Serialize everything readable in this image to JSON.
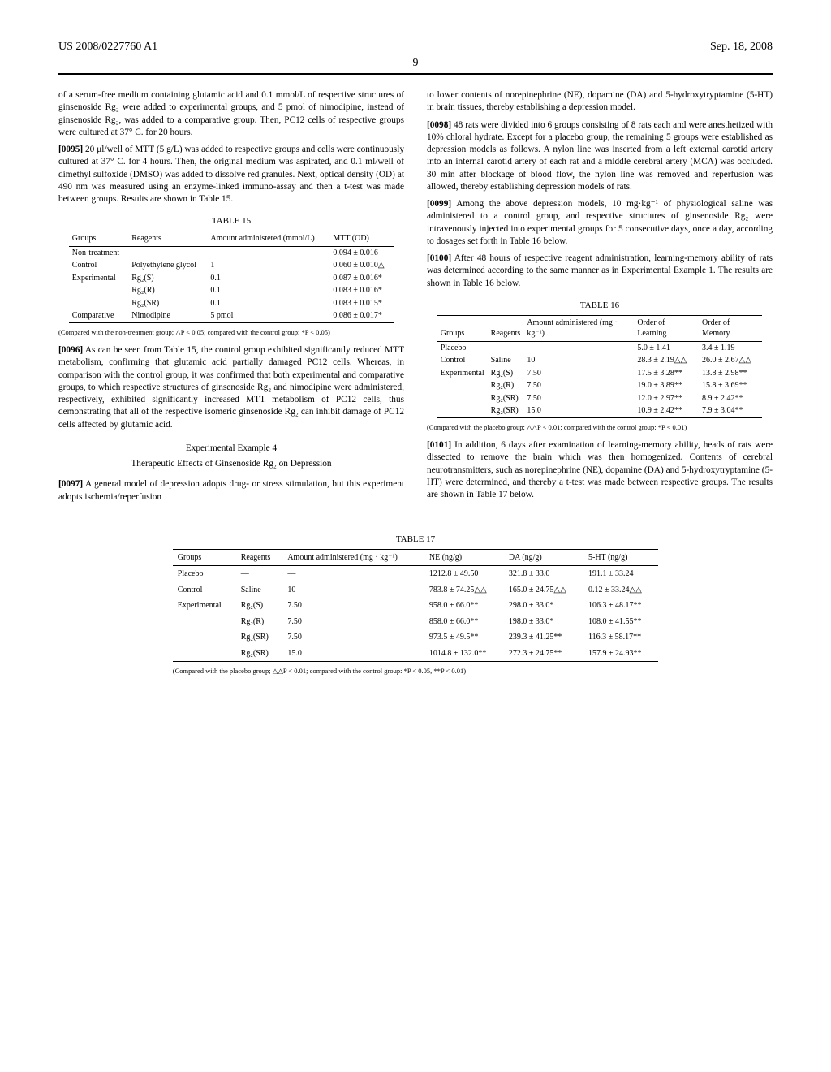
{
  "header": {
    "left": "US 2008/0227760 A1",
    "right": "Sep. 18, 2008",
    "page": "9"
  },
  "body": {
    "p1": "of a serum-free medium containing glutamic acid and 0.1 mmol/L of respective structures of ginsenoside Rg₂ were added to experimental groups, and 5 pmol of nimodipine, instead of ginsenoside Rg₂, was added to a comparative group. Then, PC12 cells of respective groups were cultured at 37° C. for 20 hours.",
    "p2n": "[0095]",
    "p2": " 20 μl/well of MTT (5 g/L) was added to respective groups and cells were continuously cultured at 37° C. for 4 hours. Then, the original medium was aspirated, and 0.1 ml/well of dimethyl sulfoxide (DMSO) was added to dissolve red granules. Next, optical density (OD) at 490 nm was measured using an enzyme-linked immuno-assay and then a t-test was made between groups. Results are shown in Table 15.",
    "t15_cap": "TABLE 15",
    "t15_h1": "Groups",
    "t15_h2": "Reagents",
    "t15_h3": "Amount administered (mmol/L)",
    "t15_h4": "MTT (OD)",
    "t15": [
      [
        "Non-treatment",
        "—",
        "—",
        "0.094 ± 0.016"
      ],
      [
        "Control",
        "Polyethylene glycol",
        "1",
        "0.060 ± 0.010△"
      ],
      [
        "Experimental",
        "Rg₂(S)",
        "0.1",
        "0.087 ± 0.016*"
      ],
      [
        "",
        "Rg₂(R)",
        "0.1",
        "0.083 ± 0.016*"
      ],
      [
        "",
        "Rg₂(SR)",
        "0.1",
        "0.083 ± 0.015*"
      ],
      [
        "Comparative",
        "Nimodipine",
        "5 pmol",
        "0.086 ± 0.017*"
      ]
    ],
    "t15_foot": "(Compared with the non-treatment group; △P < 0.05; compared with the control group: *P < 0.05)",
    "p3n": "[0096]",
    "p3": " As can be seen from Table 15, the control group exhibited significantly reduced MTT metabolism, confirming that glutamic acid partially damaged PC12 cells. Whereas, in comparison with the control group, it was confirmed that both experimental and comparative groups, to which respective structures of ginsenoside Rg₂ and nimodipine were administered, respectively, exhibited significantly increased MTT metabolism of PC12 cells, thus demonstrating that all of the respective isomeric ginsenoside Rg₂ can inhibit damage of PC12 cells affected by glutamic acid.",
    "ex4_t": "Experimental Example 4",
    "ex4_s": "Therapeutic Effects of Ginsenoside Rg₂ on Depression",
    "p4n": "[0097]",
    "p4": " A general model of depression adopts drug- or stress stimulation, but this experiment adopts ischemia/reperfusion",
    "p5": "to lower contents of norepinephrine (NE), dopamine (DA) and 5-hydroxytryptamine (5-HT) in brain tissues, thereby establishing a depression model.",
    "p6n": "[0098]",
    "p6": " 48 rats were divided into 6 groups consisting of 8 rats each and were anesthetized with 10% chloral hydrate. Except for a placebo group, the remaining 5 groups were established as depression models as follows. A nylon line was inserted from a left external carotid artery into an internal carotid artery of each rat and a middle cerebral artery (MCA) was occluded. 30 min after blockage of blood flow, the nylon line was removed and reperfusion was allowed, thereby establishing depression models of rats.",
    "p7n": "[0099]",
    "p7": " Among the above depression models, 10 mg·kg⁻¹ of physiological saline was administered to a control group, and respective structures of ginsenoside Rg₂ were intravenously injected into experimental groups for 5 consecutive days, once a day, according to dosages set forth in Table 16 below.",
    "p8n": "[0100]",
    "p8": " After 48 hours of respective reagent administration, learning-memory ability of rats was determined according to the same manner as in Experimental Example 1. The results are shown in Table 16 below.",
    "t16_cap": "TABLE 16",
    "t16_h1": "Groups",
    "t16_h2": "Reagents",
    "t16_h3": "Amount administered (mg · kg⁻¹)",
    "t16_h4": "Order of Learning",
    "t16_h5": "Order of Memory",
    "t16": [
      [
        "Placebo",
        "—",
        "—",
        "5.0 ± 1.41",
        "3.4 ± 1.19"
      ],
      [
        "Control",
        "Saline",
        "10",
        "28.3 ± 2.19△△",
        "26.0 ± 2.67△△"
      ],
      [
        "Experimental",
        "Rg₂(S)",
        "7.50",
        "17.5 ± 3.28**",
        "13.8 ± 2.98**"
      ],
      [
        "",
        "Rg₂(R)",
        "7.50",
        "19.0 ± 3.89**",
        "15.8 ± 3.69**"
      ],
      [
        "",
        "Rg₂(SR)",
        "7.50",
        "12.0 ± 2.97**",
        "8.9 ± 2.42**"
      ],
      [
        "",
        "Rg₂(SR)",
        "15.0",
        "10.9 ± 2.42**",
        "7.9 ± 3.04**"
      ]
    ],
    "t16_foot": "(Compared with the placebo group; △△P < 0.01; compared with the control group: *P < 0.01)",
    "p9n": "[0101]",
    "p9": " In addition, 6 days after examination of learning-memory ability, heads of rats were dissected to remove the brain which was then homogenized. Contents of cerebral neurotransmitters, such as norepinephrine (NE), dopamine (DA) and 5-hydroxytryptamine (5-HT) were determined, and thereby a t-test was made between respective groups. The results are shown in Table 17 below.",
    "t17_cap": "TABLE 17",
    "t17_h": [
      "Groups",
      "Reagents",
      "Amount administered (mg · kg⁻¹)",
      "NE (ng/g)",
      "DA (ng/g)",
      "5-HT (ng/g)"
    ],
    "t17": [
      [
        "Placebo",
        "—",
        "—",
        "1212.8 ± 49.50",
        "321.8 ± 33.0",
        "191.1 ± 33.24"
      ],
      [
        "Control",
        "Saline",
        "10",
        "783.8 ± 74.25△△",
        "165.0 ± 24.75△△",
        "0.12 ± 33.24△△"
      ],
      [
        "Experimental",
        "Rg₂(S)",
        "7.50",
        "958.0 ± 66.0**",
        "298.0 ± 33.0*",
        "106.3 ± 48.17**"
      ],
      [
        "",
        "Rg₂(R)",
        "7.50",
        "858.0 ± 66.0**",
        "198.0 ± 33.0*",
        "108.0 ± 41.55**"
      ],
      [
        "",
        "Rg₂(SR)",
        "7.50",
        "973.5 ± 49.5**",
        "239.3 ± 41.25**",
        "116.3 ± 58.17**"
      ],
      [
        "",
        "Rg₂(SR)",
        "15.0",
        "1014.8 ± 132.0**",
        "272.3 ± 24.75**",
        "157.9 ± 24.93**"
      ]
    ],
    "t17_foot": "(Compared with the placebo group; △△P < 0.01; compared with the control group: *P < 0.05, **P < 0.01)"
  }
}
